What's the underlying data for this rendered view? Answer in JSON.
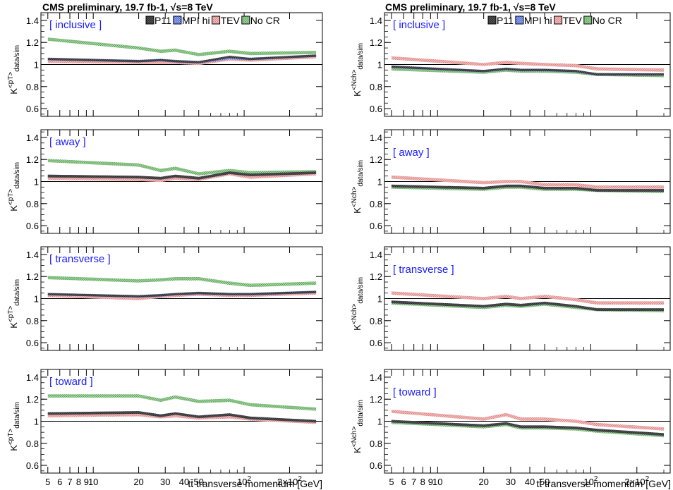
{
  "titles": {
    "left": "CMS preliminary, 19.7 fb-1, √s=8 TeV",
    "right": "CMS preliminary, 19.7 fb-1, √s=8 TeV"
  },
  "xaxis_label": "tt̄ transverse momentum [GeV]",
  "ylabels": {
    "left": "K<pT>data/sim",
    "right": "K<Nch>data/sim"
  },
  "x_tick_labels": [
    "5",
    "6",
    "7",
    "8",
    "9",
    "10",
    "20",
    "30",
    "40",
    "50",
    "10^2",
    "2×10^2"
  ],
  "y_tick_labels": [
    "0.6",
    "0.8",
    "1",
    "1.2",
    "1.4"
  ],
  "legend": [
    "P11",
    "MPI hi",
    "TEV",
    "No CR"
  ],
  "colors": {
    "P11": "#444444",
    "MPI hi": "#3b5bdb",
    "TEV": "#e58f8f",
    "No CR": "#5fb05f",
    "region": "#1a1aff"
  },
  "chart_data": [
    {
      "type": "area",
      "title": "CMS preliminary, 19.7 fb-1, √s=8 TeV",
      "region": "[ inclusive ]",
      "ylabel": "K<pT>data/sim",
      "xlabel": "",
      "xscale": "log",
      "xlim": [
        4.5,
        330
      ],
      "ylim": [
        0.53,
        1.47
      ],
      "legend_position": "top-right",
      "x": [
        5,
        20,
        28,
        35,
        50,
        80,
        110,
        300
      ],
      "series": [
        {
          "name": "P11",
          "values": [
            1.05,
            1.03,
            1.04,
            1.03,
            1.02,
            1.07,
            1.05,
            1.08
          ],
          "band": 0.01
        },
        {
          "name": "MPI hi",
          "values": [
            1.05,
            1.03,
            1.04,
            1.03,
            1.02,
            1.06,
            1.05,
            1.08
          ],
          "band": 0.012
        },
        {
          "name": "TEV",
          "values": [
            1.03,
            1.02,
            1.02,
            1.02,
            1.01,
            1.05,
            1.04,
            1.07
          ],
          "band": 0.015
        },
        {
          "name": "No CR",
          "values": [
            1.23,
            1.15,
            1.12,
            1.13,
            1.09,
            1.12,
            1.1,
            1.11
          ],
          "band": 0.015
        }
      ]
    },
    {
      "type": "area",
      "title": "",
      "region": "[ away ]",
      "ylabel": "K<pT>data/sim",
      "xlabel": "",
      "xscale": "log",
      "xlim": [
        4.5,
        330
      ],
      "ylim": [
        0.53,
        1.47
      ],
      "x": [
        5,
        20,
        28,
        35,
        50,
        80,
        110,
        300
      ],
      "series": [
        {
          "name": "P11",
          "values": [
            1.05,
            1.04,
            1.03,
            1.05,
            1.03,
            1.08,
            1.06,
            1.08
          ],
          "band": 0.012
        },
        {
          "name": "MPI hi",
          "values": [
            1.05,
            1.04,
            1.03,
            1.05,
            1.03,
            1.08,
            1.06,
            1.08
          ],
          "band": 0.012
        },
        {
          "name": "TEV",
          "values": [
            1.03,
            1.02,
            1.01,
            1.03,
            1.02,
            1.07,
            1.04,
            1.07
          ],
          "band": 0.015
        },
        {
          "name": "No CR",
          "values": [
            1.19,
            1.15,
            1.1,
            1.12,
            1.07,
            1.1,
            1.08,
            1.09
          ],
          "band": 0.015
        }
      ]
    },
    {
      "type": "area",
      "title": "",
      "region": "[ transverse ]",
      "ylabel": "K<pT>data/sim",
      "xlabel": "",
      "xscale": "log",
      "xlim": [
        4.5,
        330
      ],
      "ylim": [
        0.53,
        1.47
      ],
      "x": [
        5,
        20,
        28,
        35,
        50,
        80,
        110,
        300
      ],
      "series": [
        {
          "name": "P11",
          "values": [
            1.04,
            1.02,
            1.03,
            1.04,
            1.05,
            1.04,
            1.04,
            1.06
          ],
          "band": 0.01
        },
        {
          "name": "MPI hi",
          "values": [
            1.04,
            1.02,
            1.03,
            1.04,
            1.05,
            1.04,
            1.04,
            1.06
          ],
          "band": 0.012
        },
        {
          "name": "TEV",
          "values": [
            1.03,
            1.0,
            1.02,
            1.03,
            1.04,
            1.03,
            1.03,
            1.05
          ],
          "band": 0.015
        },
        {
          "name": "No CR",
          "values": [
            1.19,
            1.16,
            1.17,
            1.18,
            1.18,
            1.14,
            1.12,
            1.14
          ],
          "band": 0.015
        }
      ]
    },
    {
      "type": "area",
      "title": "",
      "region": "[ toward ]",
      "ylabel": "K<pT>data/sim",
      "xlabel": "tt̄ transverse momentum [GeV]",
      "xscale": "log",
      "xlim": [
        4.5,
        330
      ],
      "ylim": [
        0.53,
        1.47
      ],
      "x": [
        5,
        20,
        28,
        35,
        50,
        80,
        110,
        300
      ],
      "series": [
        {
          "name": "P11",
          "values": [
            1.07,
            1.08,
            1.05,
            1.07,
            1.04,
            1.06,
            1.03,
            1.0
          ],
          "band": 0.012
        },
        {
          "name": "MPI hi",
          "values": [
            1.07,
            1.08,
            1.05,
            1.07,
            1.04,
            1.06,
            1.03,
            1.0
          ],
          "band": 0.012
        },
        {
          "name": "TEV",
          "values": [
            1.05,
            1.06,
            1.04,
            1.05,
            1.03,
            1.04,
            1.02,
            0.99
          ],
          "band": 0.015
        },
        {
          "name": "No CR",
          "values": [
            1.23,
            1.23,
            1.19,
            1.22,
            1.18,
            1.19,
            1.15,
            1.11
          ],
          "band": 0.015
        }
      ]
    },
    {
      "type": "area",
      "title": "CMS preliminary, 19.7 fb-1, √s=8 TeV",
      "region": "[ inclusive ]",
      "ylabel": "K<Nch>data/sim",
      "xlabel": "",
      "xscale": "log",
      "xlim": [
        4.5,
        330
      ],
      "ylim": [
        0.53,
        1.47
      ],
      "legend_position": "top-right",
      "x": [
        5,
        20,
        28,
        35,
        50,
        80,
        110,
        300
      ],
      "series": [
        {
          "name": "P11",
          "values": [
            0.98,
            0.94,
            0.96,
            0.95,
            0.95,
            0.94,
            0.91,
            0.91
          ],
          "band": 0.01
        },
        {
          "name": "MPI hi",
          "values": [
            0.98,
            0.94,
            0.96,
            0.95,
            0.95,
            0.94,
            0.91,
            0.91
          ],
          "band": 0.012
        },
        {
          "name": "TEV",
          "values": [
            1.06,
            1.0,
            1.02,
            1.01,
            1.0,
            0.99,
            0.96,
            0.95
          ],
          "band": 0.015
        },
        {
          "name": "No CR",
          "values": [
            0.96,
            0.93,
            0.95,
            0.94,
            0.94,
            0.93,
            0.91,
            0.9
          ],
          "band": 0.015
        }
      ]
    },
    {
      "type": "area",
      "title": "",
      "region": "[ away ]",
      "ylabel": "K<Nch>data/sim",
      "xlabel": "",
      "xscale": "log",
      "xlim": [
        4.5,
        330
      ],
      "ylim": [
        0.53,
        1.47
      ],
      "x": [
        5,
        20,
        28,
        35,
        50,
        80,
        110,
        300
      ],
      "series": [
        {
          "name": "P11",
          "values": [
            0.96,
            0.94,
            0.96,
            0.96,
            0.94,
            0.94,
            0.92,
            0.92
          ],
          "band": 0.012
        },
        {
          "name": "MPI hi",
          "values": [
            0.96,
            0.94,
            0.96,
            0.96,
            0.94,
            0.94,
            0.92,
            0.92
          ],
          "band": 0.012
        },
        {
          "name": "TEV",
          "values": [
            1.04,
            0.99,
            1.0,
            1.0,
            0.97,
            0.97,
            0.95,
            0.95
          ],
          "band": 0.015
        },
        {
          "name": "No CR",
          "values": [
            0.95,
            0.93,
            0.95,
            0.95,
            0.93,
            0.93,
            0.92,
            0.91
          ],
          "band": 0.015
        }
      ]
    },
    {
      "type": "area",
      "title": "",
      "region": "[ transverse ]",
      "ylabel": "K<Nch>data/sim",
      "xlabel": "",
      "xscale": "log",
      "xlim": [
        4.5,
        330
      ],
      "ylim": [
        0.53,
        1.47
      ],
      "x": [
        5,
        20,
        28,
        35,
        50,
        80,
        110,
        300
      ],
      "series": [
        {
          "name": "P11",
          "values": [
            0.97,
            0.93,
            0.95,
            0.94,
            0.96,
            0.93,
            0.9,
            0.9
          ],
          "band": 0.012
        },
        {
          "name": "MPI hi",
          "values": [
            0.97,
            0.93,
            0.95,
            0.94,
            0.96,
            0.93,
            0.9,
            0.9
          ],
          "band": 0.012
        },
        {
          "name": "TEV",
          "values": [
            1.05,
            1.0,
            1.02,
            1.0,
            1.02,
            0.99,
            0.96,
            0.96
          ],
          "band": 0.015
        },
        {
          "name": "No CR",
          "values": [
            0.96,
            0.92,
            0.94,
            0.93,
            0.95,
            0.92,
            0.9,
            0.89
          ],
          "band": 0.015
        }
      ]
    },
    {
      "type": "area",
      "title": "",
      "region": "[ toward ]",
      "ylabel": "K<Nch>data/sim",
      "xlabel": "tt̄ transverse momentum [GeV]",
      "xscale": "log",
      "xlim": [
        4.5,
        330
      ],
      "ylim": [
        0.53,
        1.47
      ],
      "x": [
        5,
        20,
        28,
        35,
        50,
        80,
        110,
        300
      ],
      "series": [
        {
          "name": "P11",
          "values": [
            1.0,
            0.96,
            0.98,
            0.95,
            0.95,
            0.94,
            0.92,
            0.88
          ],
          "band": 0.012
        },
        {
          "name": "MPI hi",
          "values": [
            1.0,
            0.96,
            0.98,
            0.95,
            0.95,
            0.94,
            0.92,
            0.88
          ],
          "band": 0.012
        },
        {
          "name": "TEV",
          "values": [
            1.09,
            1.02,
            1.06,
            1.02,
            1.02,
            1.0,
            0.97,
            0.93
          ],
          "band": 0.015
        },
        {
          "name": "No CR",
          "values": [
            0.99,
            0.95,
            0.97,
            0.94,
            0.94,
            0.93,
            0.91,
            0.87
          ],
          "band": 0.015
        }
      ]
    }
  ]
}
